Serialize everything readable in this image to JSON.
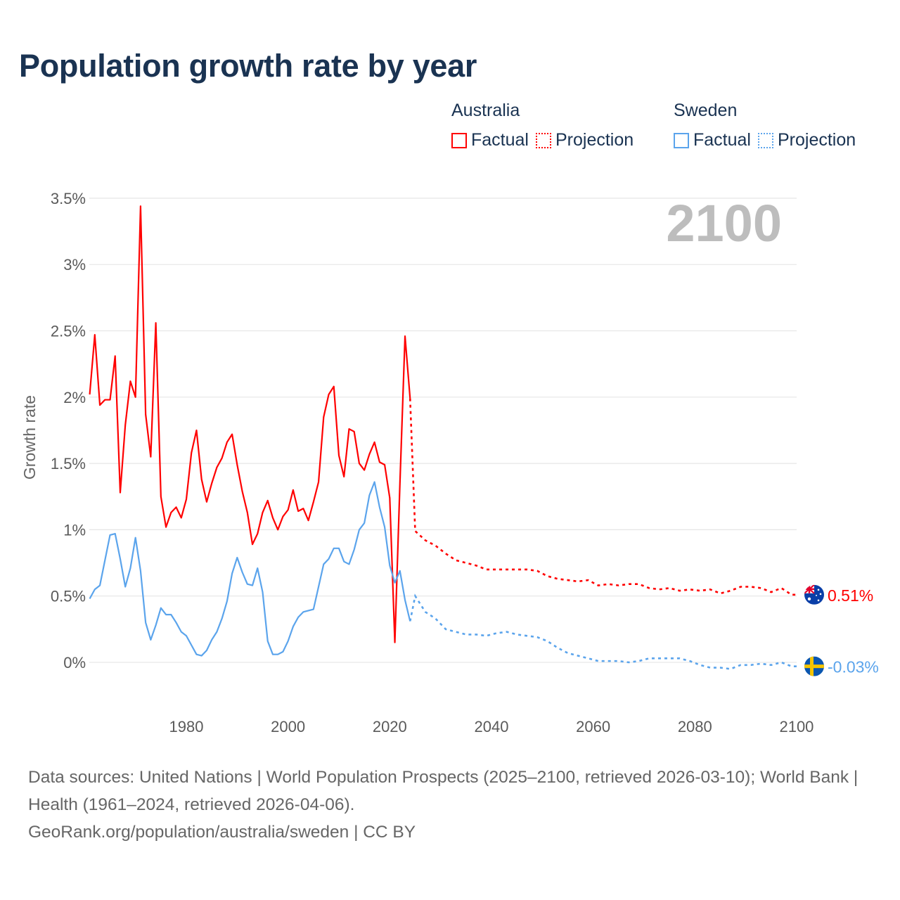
{
  "title": "Population growth rate by year",
  "legend": {
    "groups": [
      {
        "country": "Australia",
        "factual": "Factual",
        "projection": "Projection",
        "color": "#ff0000"
      },
      {
        "country": "Sweden",
        "factual": "Factual",
        "projection": "Projection",
        "color": "#5ba4ec"
      }
    ]
  },
  "footer": {
    "sources": "Data sources: United Nations | World Population Prospects (2025–2100, retrieved 2026-03-10); World Bank | Health (1961–2024, retrieved 2026-04-06).",
    "credit": "GeoRank.org/population/australia/sweden | CC BY"
  },
  "chart_data": {
    "type": "line",
    "title": "Population growth rate by year",
    "ylabel": "Growth rate",
    "xlabel": "",
    "year_watermark": "2100",
    "xlim": [
      1961,
      2100
    ],
    "ylim": [
      -0.2,
      3.5
    ],
    "x_ticks": [
      1980,
      2000,
      2020,
      2040,
      2060,
      2080,
      2100
    ],
    "y_ticks": [
      0,
      0.5,
      1,
      1.5,
      2,
      2.5,
      3,
      3.5
    ],
    "y_tick_labels": [
      "0%",
      "0.5%",
      "1%",
      "1.5%",
      "2%",
      "2.5%",
      "3%",
      "3.5%"
    ],
    "grid": true,
    "legend_position": "top-right",
    "factual_years_start": 1961,
    "projection_years": [
      2025,
      2027,
      2029,
      2031,
      2033,
      2035,
      2037,
      2039,
      2041,
      2043,
      2045,
      2047,
      2049,
      2051,
      2053,
      2055,
      2057,
      2059,
      2061,
      2063,
      2065,
      2067,
      2069,
      2071,
      2073,
      2075,
      2077,
      2079,
      2081,
      2083,
      2085,
      2087,
      2089,
      2091,
      2093,
      2095,
      2097,
      2099,
      2100
    ],
    "series": [
      {
        "name": "Australia",
        "color": "#ff0000",
        "end_label": "0.51%",
        "end_value": 0.51,
        "factual": [
          2.02,
          2.47,
          1.94,
          1.98,
          1.98,
          2.31,
          1.28,
          1.79,
          2.12,
          2.0,
          3.44,
          1.87,
          1.55,
          2.56,
          1.25,
          1.02,
          1.13,
          1.17,
          1.09,
          1.23,
          1.58,
          1.75,
          1.38,
          1.21,
          1.35,
          1.47,
          1.54,
          1.66,
          1.72,
          1.49,
          1.29,
          1.13,
          0.89,
          0.97,
          1.13,
          1.22,
          1.09,
          1.0,
          1.1,
          1.15,
          1.3,
          1.14,
          1.16,
          1.07,
          1.21,
          1.36,
          1.85,
          2.02,
          2.08,
          1.56,
          1.4,
          1.76,
          1.74,
          1.5,
          1.45,
          1.57,
          1.66,
          1.51,
          1.49,
          1.24,
          0.15,
          1.35,
          2.46,
          1.99
        ],
        "projection": [
          0.99,
          0.92,
          0.88,
          0.82,
          0.77,
          0.75,
          0.73,
          0.7,
          0.7,
          0.7,
          0.7,
          0.7,
          0.69,
          0.65,
          0.63,
          0.62,
          0.61,
          0.62,
          0.58,
          0.59,
          0.58,
          0.59,
          0.59,
          0.56,
          0.55,
          0.56,
          0.54,
          0.55,
          0.54,
          0.55,
          0.52,
          0.54,
          0.57,
          0.57,
          0.56,
          0.53,
          0.56,
          0.51,
          0.51
        ]
      },
      {
        "name": "Sweden",
        "color": "#5ba4ec",
        "end_label": "-0.03%",
        "end_value": -0.03,
        "factual": [
          0.48,
          0.55,
          0.58,
          0.77,
          0.96,
          0.97,
          0.78,
          0.57,
          0.71,
          0.94,
          0.69,
          0.3,
          0.17,
          0.28,
          0.41,
          0.36,
          0.36,
          0.3,
          0.23,
          0.2,
          0.13,
          0.06,
          0.05,
          0.09,
          0.17,
          0.23,
          0.33,
          0.46,
          0.67,
          0.79,
          0.68,
          0.59,
          0.58,
          0.71,
          0.53,
          0.16,
          0.06,
          0.06,
          0.08,
          0.16,
          0.27,
          0.34,
          0.38,
          0.39,
          0.4,
          0.57,
          0.74,
          0.78,
          0.86,
          0.86,
          0.76,
          0.74,
          0.85,
          1.0,
          1.05,
          1.26,
          1.36,
          1.17,
          1.02,
          0.73,
          0.6,
          0.69,
          0.47,
          0.31
        ],
        "projection": [
          0.5,
          0.38,
          0.33,
          0.25,
          0.23,
          0.21,
          0.21,
          0.2,
          0.22,
          0.23,
          0.21,
          0.2,
          0.19,
          0.16,
          0.11,
          0.07,
          0.05,
          0.03,
          0.01,
          0.01,
          0.01,
          0.0,
          0.01,
          0.03,
          0.03,
          0.03,
          0.03,
          0.01,
          -0.02,
          -0.04,
          -0.04,
          -0.05,
          -0.02,
          -0.02,
          -0.01,
          -0.02,
          0.0,
          -0.03,
          -0.03
        ]
      }
    ]
  }
}
